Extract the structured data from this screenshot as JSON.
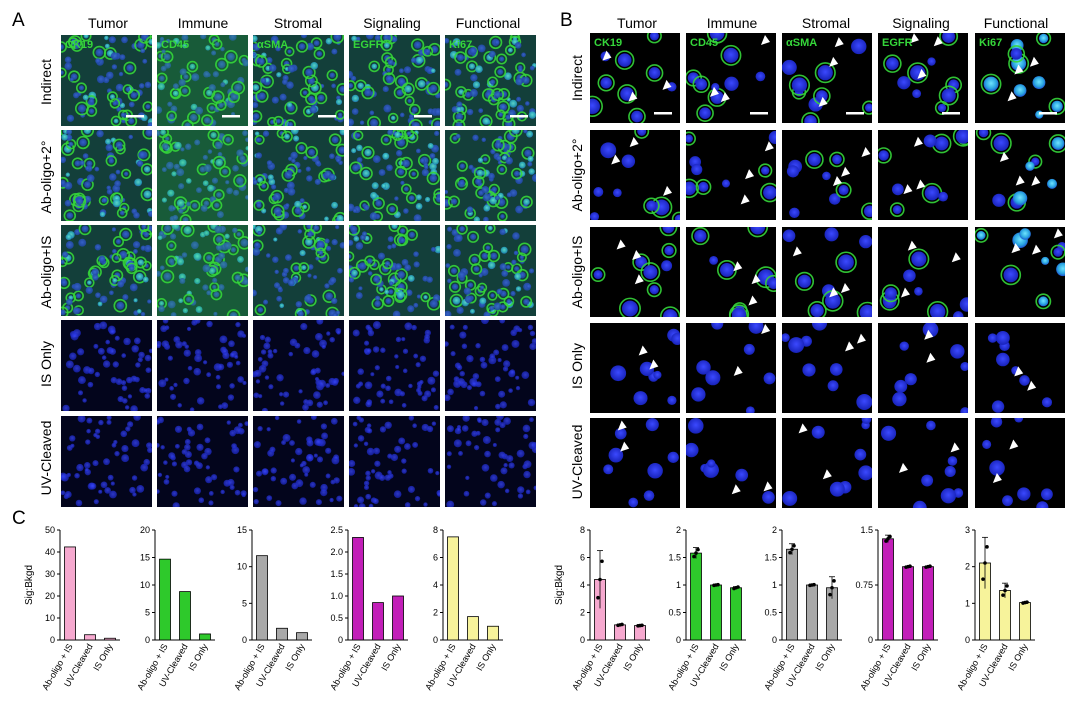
{
  "panels": {
    "A": {
      "letter": "A",
      "columns": [
        "Tumor",
        "Immune",
        "Stromal",
        "Signaling",
        "Functional"
      ],
      "markers": [
        "CK19",
        "CD45",
        "αSMA",
        "EGFR",
        "Ki67"
      ],
      "rows": [
        "Indirect",
        "Ab-oligo+2°",
        "Ab-oligo+IS",
        "IS Only",
        "UV-Cleaved"
      ]
    },
    "B": {
      "letter": "B",
      "columns": [
        "Tumor",
        "Immune",
        "Stromal",
        "Signaling",
        "Functional"
      ],
      "markers": [
        "CK19",
        "CD45",
        "αSMA",
        "EGFR",
        "Ki67"
      ],
      "rows": [
        "Indirect",
        "Ab-oligo+2°",
        "Ab-oligo+IS",
        "IS Only",
        "UV-Cleaved"
      ]
    },
    "C": {
      "letter": "C"
    }
  },
  "colors": {
    "nuclei": "#1d2bd6",
    "signal": "#35d63a",
    "arrow": "#ffffff",
    "bar_pink": "#f6a9cf",
    "bar_green": "#2ec92b",
    "bar_gray": "#a9a9a9",
    "bar_magenta": "#c21fb8",
    "bar_yellow": "#f7f39b"
  },
  "chart_data": [
    {
      "type": "bar",
      "panel": "C",
      "ylabel": "Sig:Bkgd",
      "categories": [
        "Ab-oligo + IS",
        "UV-Cleaved",
        "IS Only"
      ],
      "values": [
        42.3,
        2.4,
        0.8
      ],
      "ylim": [
        0,
        50
      ],
      "yticks": [
        "0",
        "10",
        "20",
        "30",
        "40",
        "50"
      ],
      "color": "#f6a9cf"
    },
    {
      "type": "bar",
      "panel": "C",
      "ylabel": "",
      "categories": [
        "Ab-oligo + IS",
        "UV-Cleaved",
        "IS Only"
      ],
      "values": [
        14.7,
        8.8,
        1.1
      ],
      "ylim": [
        0,
        20
      ],
      "yticks": [
        "0",
        "5",
        "10",
        "15",
        "20"
      ],
      "color": "#2ec92b"
    },
    {
      "type": "bar",
      "panel": "C",
      "ylabel": "",
      "categories": [
        "Ab-oligo + IS",
        "UV-Cleaved",
        "IS Only"
      ],
      "values": [
        11.5,
        1.6,
        1.0
      ],
      "ylim": [
        0,
        15
      ],
      "yticks": [
        "0",
        "5",
        "10",
        "15"
      ],
      "color": "#a9a9a9"
    },
    {
      "type": "bar",
      "panel": "C",
      "ylabel": "",
      "categories": [
        "Ab-oligo + IS",
        "UV-Cleaved",
        "IS Only"
      ],
      "values": [
        2.33,
        0.85,
        1.0
      ],
      "ylim": [
        0,
        2.5
      ],
      "yticks": [
        "0",
        "0.5",
        "1.0",
        "1.5",
        "2.0",
        "2.5"
      ],
      "color": "#c21fb8"
    },
    {
      "type": "bar",
      "panel": "C",
      "ylabel": "",
      "categories": [
        "Ab-oligo + IS",
        "UV-Cleaved",
        "IS Only"
      ],
      "values": [
        7.5,
        1.7,
        1.0
      ],
      "ylim": [
        0,
        8
      ],
      "yticks": [
        "0",
        "2",
        "4",
        "6",
        "8"
      ],
      "color": "#f7f39b"
    },
    {
      "type": "bar",
      "panel": "B",
      "ylabel": "Sig:Bkgd",
      "categories": [
        "Ab-oligo + IS",
        "UV-Cleaved",
        "IS Only"
      ],
      "values": [
        4.4,
        1.1,
        1.05
      ],
      "errors": [
        2.1,
        0.05,
        0.03
      ],
      "ylim": [
        0,
        8
      ],
      "yticks": [
        "0",
        "2",
        "4",
        "6",
        "8"
      ],
      "color": "#f6a9cf"
    },
    {
      "type": "bar",
      "panel": "B",
      "ylabel": "",
      "categories": [
        "Ab-oligo + IS",
        "UV-Cleaved",
        "IS Only"
      ],
      "values": [
        1.58,
        1.0,
        0.95
      ],
      "errors": [
        0.1,
        0.01,
        0.02
      ],
      "ylim": [
        0,
        2
      ],
      "yticks": [
        "0",
        "0.5",
        "1",
        "1.5",
        "2"
      ],
      "color": "#2ec92b"
    },
    {
      "type": "bar",
      "panel": "B",
      "ylabel": "",
      "categories": [
        "Ab-oligo + IS",
        "UV-Cleaved",
        "IS Only"
      ],
      "values": [
        1.65,
        1.0,
        0.95
      ],
      "errors": [
        0.1,
        0.01,
        0.2
      ],
      "ylim": [
        0,
        2
      ],
      "yticks": [
        "0",
        "0.5",
        "1",
        "1.5",
        "2"
      ],
      "color": "#a9a9a9"
    },
    {
      "type": "bar",
      "panel": "B",
      "ylabel": "",
      "categories": [
        "Ab-oligo + IS",
        "UV-Cleaved",
        "IS Only"
      ],
      "values": [
        1.38,
        1.0,
        1.0
      ],
      "errors": [
        0.05,
        0.01,
        0.01
      ],
      "ylim": [
        0,
        1.5
      ],
      "yticks": [
        "0",
        "0.75",
        "1.5"
      ],
      "color": "#c21fb8"
    },
    {
      "type": "bar",
      "panel": "B",
      "ylabel": "",
      "categories": [
        "Ab-oligo + IS",
        "UV-Cleaved",
        "IS Only"
      ],
      "values": [
        2.1,
        1.35,
        1.02
      ],
      "errors": [
        0.7,
        0.2,
        0.02
      ],
      "ylim": [
        0,
        3
      ],
      "yticks": [
        "0",
        "1",
        "2",
        "3"
      ],
      "color": "#f7f39b"
    }
  ]
}
